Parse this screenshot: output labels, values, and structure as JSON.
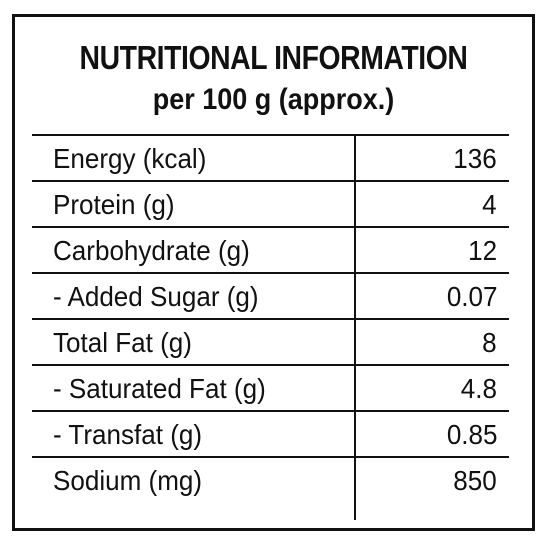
{
  "panel": {
    "title": "NUTRITIONAL INFORMATION",
    "subtitle": "per 100 g (approx.)"
  },
  "rows": [
    {
      "nutrient": "Energy (kcal)",
      "value": "136"
    },
    {
      "nutrient": "Protein (g)",
      "value": "4"
    },
    {
      "nutrient": "Carbohydrate (g)",
      "value": "12"
    },
    {
      "nutrient": " - Added Sugar (g)",
      "value": "0.07"
    },
    {
      "nutrient": "Total Fat (g)",
      "value": "8"
    },
    {
      "nutrient": " - Saturated Fat (g)",
      "value": "4.8"
    },
    {
      "nutrient": " - Transfat (g)",
      "value": "0.85"
    },
    {
      "nutrient": "Sodium (mg)",
      "value": "850"
    }
  ]
}
